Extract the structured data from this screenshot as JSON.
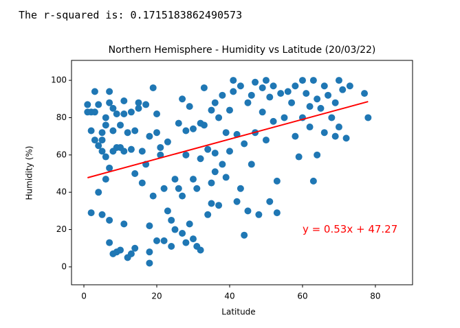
{
  "output_text": "The r-squared is: 0.1715183862490573",
  "chart_data": {
    "type": "scatter",
    "title": "Northern Hemisphere - Humidity vs Latitude (20/03/22)",
    "x_label": "Latitude",
    "y_label": "Humidity (%)",
    "color": "#1f77b4",
    "x": [
      1,
      1,
      2,
      2,
      2,
      3,
      3,
      3,
      4,
      4,
      4,
      5,
      5,
      5,
      5,
      6,
      6,
      6,
      6,
      7,
      7,
      7,
      7,
      7,
      8,
      8,
      8,
      8,
      9,
      9,
      9,
      10,
      10,
      10,
      11,
      11,
      11,
      11,
      12,
      12,
      13,
      13,
      13,
      14,
      14,
      14,
      15,
      15,
      16,
      16,
      17,
      17,
      18,
      18,
      18,
      18,
      19,
      19,
      20,
      20,
      20,
      21,
      21,
      22,
      22,
      23,
      23,
      24,
      24,
      25,
      25,
      26,
      26,
      27,
      27,
      27,
      28,
      28,
      28,
      29,
      29,
      30,
      30,
      30,
      31,
      31,
      32,
      32,
      32,
      33,
      33,
      34,
      34,
      35,
      35,
      35,
      36,
      36,
      36,
      37,
      37,
      38,
      38,
      39,
      39,
      40,
      40,
      41,
      41,
      42,
      42,
      43,
      43,
      44,
      44,
      45,
      45,
      46,
      46,
      47,
      47,
      48,
      49,
      49,
      50,
      50,
      51,
      51,
      52,
      52,
      53,
      53,
      54,
      55,
      56,
      57,
      58,
      58,
      59,
      60,
      60,
      61,
      62,
      62,
      63,
      63,
      64,
      64,
      65,
      66,
      66,
      67,
      68,
      69,
      69,
      70,
      70,
      71,
      72,
      73,
      77,
      78
    ],
    "values": [
      87,
      83,
      83,
      73,
      29,
      94,
      83,
      68,
      87,
      65,
      40,
      72,
      62,
      28,
      68,
      80,
      76,
      47,
      59,
      94,
      88,
      53,
      25,
      13,
      85,
      73,
      62,
      7,
      82,
      64,
      8,
      76,
      64,
      9,
      89,
      82,
      62,
      23,
      72,
      5,
      83,
      63,
      7,
      73,
      10,
      50,
      88,
      85,
      62,
      45,
      87,
      55,
      70,
      22,
      2,
      8,
      96,
      38,
      82,
      72,
      14,
      64,
      60,
      14,
      42,
      67,
      30,
      25,
      11,
      47,
      20,
      77,
      42,
      90,
      38,
      18,
      73,
      60,
      13,
      86,
      23,
      74,
      47,
      15,
      42,
      11,
      77,
      58,
      9,
      96,
      76,
      63,
      28,
      84,
      45,
      34,
      88,
      61,
      51,
      80,
      33,
      92,
      55,
      72,
      48,
      84,
      62,
      100,
      94,
      71,
      35,
      97,
      42,
      66,
      17,
      88,
      30,
      92,
      55,
      99,
      72,
      28,
      96,
      83,
      100,
      68,
      91,
      35,
      97,
      78,
      46,
      29,
      93,
      80,
      94,
      88,
      97,
      70,
      59,
      100,
      80,
      93,
      86,
      75,
      100,
      46,
      90,
      60,
      85,
      97,
      72,
      92,
      80,
      88,
      70,
      100,
      75,
      95,
      69,
      97,
      93,
      80
    ],
    "fit_line": {
      "color": "red",
      "x": [
        1,
        78
      ],
      "values": [
        47.8,
        88.6
      ]
    },
    "annotation": {
      "text": "y = 0.53x + 47.27",
      "x": 60,
      "y": 20,
      "color": "red"
    },
    "xlim": [
      -3.4,
      90.2
    ],
    "ylim": [
      -9.6,
      110.7
    ],
    "xticks": [
      0,
      20,
      40,
      60,
      80
    ],
    "yticks": [
      0,
      20,
      40,
      60,
      80,
      100
    ]
  }
}
